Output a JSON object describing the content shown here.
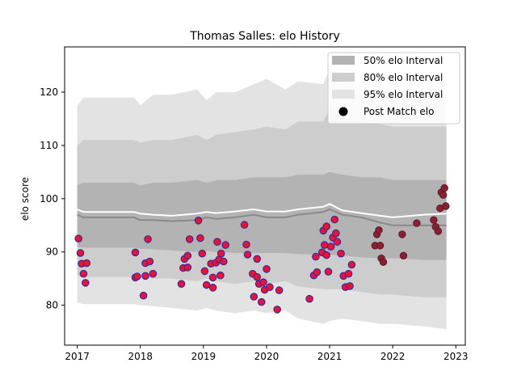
{
  "chart_data": {
    "type": "scatter",
    "title": "Thomas Salles: elo History",
    "xlabel": "",
    "ylabel": "elo score",
    "xlim": [
      2016.8,
      2023.15
    ],
    "ylim": [
      72.5,
      128.5
    ],
    "x_ticks": [
      2017,
      2018,
      2019,
      2020,
      2021,
      2022,
      2023
    ],
    "y_ticks": [
      80,
      90,
      100,
      110,
      120
    ],
    "grid": false,
    "legend_position": "top-right",
    "legend": [
      {
        "label": "50% elo Interval",
        "kind": "band",
        "color": "#b3b3b3"
      },
      {
        "label": "80% elo Interval",
        "kind": "band",
        "color": "#cdcdcd"
      },
      {
        "label": "95% elo Interval",
        "kind": "band",
        "color": "#e3e3e3"
      },
      {
        "label": "Post Match elo",
        "kind": "marker",
        "color": "#000000"
      }
    ],
    "colors": {
      "band_95": "#e3e3e3",
      "band_80": "#cdcdcd",
      "band_50": "#b3b3b3",
      "median_line": "#8a8a8a",
      "mean_line": "#ffffff",
      "point_fill": "#ee1133",
      "point_edge": "#3a2a9a",
      "point_fill_recent": "#8b2030",
      "point_edge_recent": "#5a1a2a"
    },
    "bands": {
      "x": [
        2017.0,
        2017.1,
        2017.9,
        2018.0,
        2018.2,
        2018.5,
        2018.9,
        2019.05,
        2019.2,
        2019.5,
        2019.8,
        2020.0,
        2020.3,
        2020.5,
        2020.9,
        2021.0,
        2021.2,
        2021.5,
        2021.8,
        2022.0,
        2022.5,
        2022.85
      ],
      "p95_upper": [
        117.5,
        119.0,
        119.0,
        117.5,
        119.5,
        119.5,
        120.5,
        118.5,
        120.0,
        120.0,
        121.5,
        122.5,
        120.5,
        122.0,
        121.5,
        124.5,
        123.0,
        121.5,
        121.5,
        120.0,
        120.5,
        120.5
      ],
      "p95_lower": [
        80.5,
        80.2,
        80.2,
        80.0,
        79.8,
        79.5,
        79.0,
        79.5,
        79.0,
        78.5,
        79.0,
        78.5,
        79.0,
        77.5,
        76.5,
        77.0,
        77.5,
        77.0,
        76.5,
        76.5,
        76.0,
        75.5
      ],
      "p80_upper": [
        110.0,
        111.0,
        111.0,
        110.5,
        111.0,
        111.0,
        112.0,
        111.0,
        112.0,
        112.5,
        113.0,
        113.5,
        113.0,
        114.5,
        114.5,
        117.0,
        115.5,
        114.5,
        114.0,
        113.5,
        113.5,
        113.5
      ],
      "p80_lower": [
        85.5,
        85.3,
        85.3,
        85.2,
        85.0,
        85.0,
        84.5,
        85.0,
        84.5,
        84.0,
        84.5,
        84.0,
        84.5,
        83.5,
        83.0,
        83.0,
        83.0,
        82.5,
        82.0,
        82.0,
        81.5,
        81.5
      ],
      "p50_upper": [
        102.5,
        103.0,
        103.0,
        102.5,
        103.0,
        103.0,
        103.5,
        103.0,
        103.5,
        103.5,
        104.0,
        104.0,
        104.0,
        104.5,
        104.5,
        105.0,
        104.5,
        104.0,
        104.0,
        103.5,
        103.5,
        103.5
      ],
      "p50_lower": [
        91.0,
        90.8,
        90.8,
        90.6,
        90.5,
        90.3,
        90.0,
        90.2,
        90.0,
        89.8,
        89.8,
        89.8,
        89.8,
        89.6,
        89.5,
        89.5,
        89.3,
        89.0,
        88.8,
        88.8,
        88.5,
        88.5
      ],
      "median": [
        97.0,
        96.5,
        96.5,
        96.0,
        96.0,
        95.8,
        96.0,
        96.5,
        96.2,
        96.5,
        97.0,
        96.5,
        96.5,
        97.0,
        97.5,
        98.0,
        97.0,
        96.5,
        95.5,
        95.0,
        95.0,
        95.0
      ],
      "mean": [
        98.0,
        97.5,
        97.5,
        97.2,
        97.0,
        96.8,
        97.2,
        97.5,
        97.3,
        97.6,
        98.0,
        97.6,
        97.6,
        98.0,
        98.5,
        99.0,
        97.8,
        97.3,
        96.8,
        96.5,
        97.0,
        97.2
      ]
    },
    "points": [
      [
        2017.02,
        92.5
      ],
      [
        2017.05,
        89.8
      ],
      [
        2017.07,
        87.8
      ],
      [
        2017.1,
        85.9
      ],
      [
        2017.13,
        84.2
      ],
      [
        2017.15,
        87.9
      ],
      [
        2017.92,
        89.9
      ],
      [
        2017.92,
        85.2
      ],
      [
        2017.95,
        85.4
      ],
      [
        2018.05,
        81.8
      ],
      [
        2018.08,
        85.5
      ],
      [
        2018.08,
        87.9
      ],
      [
        2018.12,
        92.4
      ],
      [
        2018.15,
        88.2
      ],
      [
        2018.2,
        85.9
      ],
      [
        2018.65,
        84.0
      ],
      [
        2018.68,
        87.0
      ],
      [
        2018.7,
        88.7
      ],
      [
        2018.75,
        87.1
      ],
      [
        2018.75,
        89.3
      ],
      [
        2018.78,
        92.4
      ],
      [
        2018.92,
        95.9
      ],
      [
        2018.95,
        92.6
      ],
      [
        2018.98,
        89.7
      ],
      [
        2019.02,
        86.4
      ],
      [
        2019.05,
        83.8
      ],
      [
        2019.12,
        87.8
      ],
      [
        2019.15,
        85.2
      ],
      [
        2019.15,
        83.3
      ],
      [
        2019.2,
        88.0
      ],
      [
        2019.22,
        91.9
      ],
      [
        2019.25,
        88.6
      ],
      [
        2019.27,
        85.6
      ],
      [
        2019.28,
        89.7
      ],
      [
        2019.32,
        88.2
      ],
      [
        2019.35,
        91.3
      ],
      [
        2019.65,
        95.1
      ],
      [
        2019.68,
        91.4
      ],
      [
        2019.7,
        89.5
      ],
      [
        2019.78,
        85.9
      ],
      [
        2019.8,
        81.6
      ],
      [
        2019.85,
        88.7
      ],
      [
        2019.85,
        85.3
      ],
      [
        2019.88,
        84.0
      ],
      [
        2019.92,
        80.6
      ],
      [
        2019.95,
        84.3
      ],
      [
        2019.97,
        82.9
      ],
      [
        2020.0,
        86.8
      ],
      [
        2020.05,
        83.4
      ],
      [
        2020.17,
        79.2
      ],
      [
        2020.2,
        82.8
      ],
      [
        2020.68,
        81.2
      ],
      [
        2020.75,
        85.6
      ],
      [
        2020.78,
        89.1
      ],
      [
        2020.8,
        86.2
      ],
      [
        2020.88,
        89.9
      ],
      [
        2020.9,
        94.0
      ],
      [
        2020.92,
        91.3
      ],
      [
        2020.95,
        94.8
      ],
      [
        2020.95,
        89.4
      ],
      [
        2020.98,
        86.3
      ],
      [
        2021.02,
        91.0
      ],
      [
        2021.05,
        92.7
      ],
      [
        2021.08,
        96.1
      ],
      [
        2021.1,
        93.5
      ],
      [
        2021.12,
        91.9
      ],
      [
        2021.18,
        89.7
      ],
      [
        2021.22,
        85.5
      ],
      [
        2021.25,
        83.4
      ],
      [
        2021.3,
        85.9
      ],
      [
        2021.32,
        83.6
      ],
      [
        2021.35,
        87.6
      ]
    ],
    "points_recent": [
      [
        2021.72,
        91.2
      ],
      [
        2021.75,
        93.3
      ],
      [
        2021.78,
        94.1
      ],
      [
        2021.8,
        91.2
      ],
      [
        2021.82,
        88.8
      ],
      [
        2021.85,
        88.1
      ],
      [
        2022.15,
        93.3
      ],
      [
        2022.17,
        89.3
      ],
      [
        2022.38,
        95.4
      ],
      [
        2022.65,
        96.0
      ],
      [
        2022.68,
        94.7
      ],
      [
        2022.72,
        93.9
      ],
      [
        2022.75,
        98.2
      ],
      [
        2022.77,
        101.2
      ],
      [
        2022.8,
        100.7
      ],
      [
        2022.82,
        102.0
      ],
      [
        2022.84,
        98.6
      ]
    ]
  }
}
